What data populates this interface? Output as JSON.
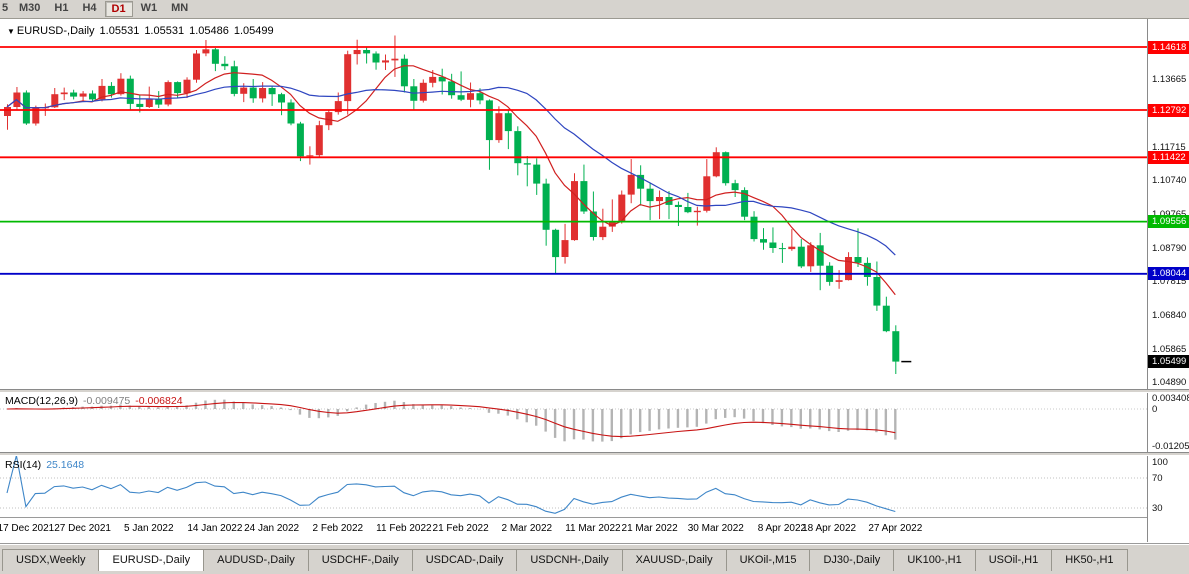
{
  "toolbar": {
    "partial_label": "5",
    "timeframes": [
      "M30",
      "H1",
      "H4",
      "D1",
      "W1",
      "MN"
    ],
    "active_timeframe": "D1"
  },
  "chart": {
    "header": {
      "symbol": "EURUSD-,Daily",
      "open": "1.05531",
      "high": "1.05531",
      "low": "1.05486",
      "close": "1.05499"
    },
    "levels": [
      {
        "price": 1.14618,
        "label": "1.14618",
        "color": "#ff0000"
      },
      {
        "price": 1.12792,
        "label": "1.12792",
        "color": "#ff0000"
      },
      {
        "price": 1.11422,
        "label": "1.11422",
        "color": "#ff0000"
      },
      {
        "price": 1.09556,
        "label": "1.09556",
        "color": "#00b900"
      },
      {
        "price": 1.08044,
        "label": "1.08044",
        "color": "#0000c8"
      }
    ],
    "current_price": {
      "price": 1.05499,
      "label": "1.05499",
      "color": "#000000"
    },
    "price_axis_ticks": [
      {
        "price": 1.13665,
        "label": "1.13665"
      },
      {
        "price": 1.1269,
        "label": "1.12690"
      },
      {
        "price": 1.11715,
        "label": "1.11715"
      },
      {
        "price": 1.1074,
        "label": "1.10740"
      },
      {
        "price": 1.09765,
        "label": "1.09765"
      },
      {
        "price": 1.0879,
        "label": "1.08790"
      },
      {
        "price": 1.07815,
        "label": "1.07815"
      },
      {
        "price": 1.0684,
        "label": "1.06840"
      },
      {
        "price": 1.05865,
        "label": "1.05865"
      },
      {
        "price": 1.0489,
        "label": "1.04890"
      }
    ]
  },
  "macd": {
    "label": "MACD(12,26,9)",
    "value_main": "-0.009475",
    "value_signal": "-0.006824",
    "fast": 12,
    "slow": 26,
    "signal": 9,
    "axis": [
      {
        "value": 0.003408,
        "label": "0.003408"
      },
      {
        "value": 0,
        "label": "0"
      },
      {
        "value": -0.012058,
        "label": "-0.012058"
      }
    ]
  },
  "rsi": {
    "label": "RSI(14)",
    "value": "25.1648",
    "period": 14,
    "axis": [
      {
        "value": 100,
        "label": "100"
      },
      {
        "value": 70,
        "label": "70"
      },
      {
        "value": 30,
        "label": "30"
      }
    ]
  },
  "tabs": [
    {
      "label": "USDX,Weekly",
      "active": false
    },
    {
      "label": "EURUSD-,Daily",
      "active": true
    },
    {
      "label": "AUDUSD-,Daily",
      "active": false
    },
    {
      "label": "USDCHF-,Daily",
      "active": false
    },
    {
      "label": "USDCAD-,Daily",
      "active": false
    },
    {
      "label": "USDCNH-,Daily",
      "active": false
    },
    {
      "label": "XAUUSD-,Daily",
      "active": false
    },
    {
      "label": "UKOil-,M15",
      "active": false
    },
    {
      "label": "DJ30-,Daily",
      "active": false
    },
    {
      "label": "UK100-,H1",
      "active": false
    },
    {
      "label": "USOil-,H1",
      "active": false
    },
    {
      "label": "HK50-,H1",
      "active": false
    }
  ],
  "colors": {
    "bull": "#e03030",
    "bear": "#00b050",
    "macd_hist": "#b4b4b4",
    "macd_signal": "#c81414",
    "rsi_line": "#3e86c8"
  },
  "chart_data": {
    "type": "candlestick",
    "title": "EURUSD-,Daily",
    "symbol": "EURUSD",
    "timeframe": "Daily",
    "ylim": [
      1.0473,
      1.1534
    ],
    "x_labels": [
      {
        "index": 2,
        "label": "17 Dec 2021"
      },
      {
        "index": 8,
        "label": "27 Dec 2021"
      },
      {
        "index": 15,
        "label": "5 Jan 2022"
      },
      {
        "index": 22,
        "label": "14 Jan 2022"
      },
      {
        "index": 28,
        "label": "24 Jan 2022"
      },
      {
        "index": 35,
        "label": "2 Feb 2022"
      },
      {
        "index": 42,
        "label": "11 Feb 2022"
      },
      {
        "index": 48,
        "label": "21 Feb 2022"
      },
      {
        "index": 55,
        "label": "2 Mar 2022"
      },
      {
        "index": 62,
        "label": "11 Mar 2022"
      },
      {
        "index": 68,
        "label": "21 Mar 2022"
      },
      {
        "index": 75,
        "label": "30 Mar 2022"
      },
      {
        "index": 82,
        "label": "8 Apr 2022"
      },
      {
        "index": 87,
        "label": "18 Apr 2022"
      },
      {
        "index": 94,
        "label": "27 Apr 2022"
      }
    ],
    "overlays": [
      {
        "name": "MA fast",
        "type": "sma",
        "period": 8,
        "color": "#d02020"
      },
      {
        "name": "MA slow",
        "type": "sma",
        "period": 20,
        "color": "#2f46c0"
      }
    ],
    "candles": [
      [
        1.1262,
        1.1296,
        1.1222,
        1.1288
      ],
      [
        1.1288,
        1.1346,
        1.1281,
        1.133
      ],
      [
        1.133,
        1.1336,
        1.1236,
        1.124
      ],
      [
        1.124,
        1.1292,
        1.1234,
        1.1285
      ],
      [
        1.1285,
        1.1298,
        1.1262,
        1.1287
      ],
      [
        1.1287,
        1.1343,
        1.1285,
        1.1325
      ],
      [
        1.1325,
        1.1344,
        1.1308,
        1.133
      ],
      [
        1.133,
        1.1338,
        1.131,
        1.1318
      ],
      [
        1.1318,
        1.1334,
        1.1305,
        1.1327
      ],
      [
        1.1327,
        1.1336,
        1.1302,
        1.131
      ],
      [
        1.131,
        1.1369,
        1.1304,
        1.1349
      ],
      [
        1.1349,
        1.136,
        1.1315,
        1.1325
      ],
      [
        1.1325,
        1.1386,
        1.1321,
        1.137
      ],
      [
        1.137,
        1.1379,
        1.1279,
        1.1297
      ],
      [
        1.1297,
        1.1323,
        1.1272,
        1.1288
      ],
      [
        1.1288,
        1.1347,
        1.1285,
        1.1312
      ],
      [
        1.1312,
        1.1334,
        1.1285,
        1.1295
      ],
      [
        1.1295,
        1.1365,
        1.129,
        1.136
      ],
      [
        1.136,
        1.1362,
        1.1313,
        1.1328
      ],
      [
        1.1328,
        1.1374,
        1.1314,
        1.1367
      ],
      [
        1.1367,
        1.1453,
        1.1358,
        1.1443
      ],
      [
        1.1443,
        1.1482,
        1.1435,
        1.1455
      ],
      [
        1.1455,
        1.1459,
        1.1392,
        1.1413
      ],
      [
        1.1413,
        1.1435,
        1.1395,
        1.1406
      ],
      [
        1.1406,
        1.1422,
        1.1319,
        1.1326
      ],
      [
        1.1326,
        1.1357,
        1.1302,
        1.1344
      ],
      [
        1.1344,
        1.1369,
        1.13,
        1.1313
      ],
      [
        1.1313,
        1.136,
        1.1301,
        1.1343
      ],
      [
        1.1343,
        1.1349,
        1.1291,
        1.1325
      ],
      [
        1.1325,
        1.1329,
        1.1264,
        1.1301
      ],
      [
        1.1301,
        1.131,
        1.1235,
        1.124
      ],
      [
        1.124,
        1.1245,
        1.1131,
        1.1145
      ],
      [
        1.1145,
        1.1174,
        1.1121,
        1.1148
      ],
      [
        1.1148,
        1.1248,
        1.1141,
        1.1235
      ],
      [
        1.1235,
        1.1279,
        1.1221,
        1.1273
      ],
      [
        1.1273,
        1.133,
        1.1266,
        1.1305
      ],
      [
        1.1305,
        1.1451,
        1.1266,
        1.1441
      ],
      [
        1.1441,
        1.1483,
        1.1411,
        1.1453
      ],
      [
        1.1453,
        1.1461,
        1.1414,
        1.1443
      ],
      [
        1.1443,
        1.1449,
        1.1396,
        1.1417
      ],
      [
        1.1417,
        1.144,
        1.1395,
        1.1423
      ],
      [
        1.1423,
        1.1495,
        1.1375,
        1.1428
      ],
      [
        1.1428,
        1.144,
        1.133,
        1.1348
      ],
      [
        1.1348,
        1.1369,
        1.128,
        1.1306
      ],
      [
        1.1306,
        1.1368,
        1.1301,
        1.1358
      ],
      [
        1.1358,
        1.1395,
        1.1345,
        1.1375
      ],
      [
        1.1375,
        1.1399,
        1.1324,
        1.1362
      ],
      [
        1.1362,
        1.1384,
        1.1312,
        1.1322
      ],
      [
        1.1322,
        1.1391,
        1.1305,
        1.1309
      ],
      [
        1.1309,
        1.1359,
        1.1287,
        1.1328
      ],
      [
        1.1328,
        1.1342,
        1.1296,
        1.1307
      ],
      [
        1.1307,
        1.131,
        1.1106,
        1.1192
      ],
      [
        1.1192,
        1.129,
        1.1184,
        1.127
      ],
      [
        1.127,
        1.128,
        1.1166,
        1.1218
      ],
      [
        1.1218,
        1.1232,
        1.109,
        1.1125
      ],
      [
        1.1125,
        1.1146,
        1.1058,
        1.1121
      ],
      [
        1.1121,
        1.1139,
        1.1033,
        1.1066
      ],
      [
        1.1066,
        1.108,
        1.0886,
        1.0932
      ],
      [
        1.0932,
        1.0935,
        1.0806,
        1.0853
      ],
      [
        1.0853,
        1.0949,
        1.0834,
        1.0902
      ],
      [
        1.0902,
        1.1096,
        1.09,
        1.1073
      ],
      [
        1.1073,
        1.1121,
        1.0978,
        1.0985
      ],
      [
        1.0985,
        1.1043,
        1.0901,
        1.0911
      ],
      [
        1.0911,
        1.0993,
        1.0902,
        1.0941
      ],
      [
        1.0941,
        1.102,
        1.0926,
        1.0955
      ],
      [
        1.0955,
        1.1046,
        1.095,
        1.1034
      ],
      [
        1.1034,
        1.1137,
        1.1009,
        1.1091
      ],
      [
        1.1091,
        1.1119,
        1.1002,
        1.1051
      ],
      [
        1.1051,
        1.1069,
        1.096,
        1.1015
      ],
      [
        1.1015,
        1.1046,
        1.0963,
        1.1027
      ],
      [
        1.1027,
        1.1044,
        1.0963,
        1.1004
      ],
      [
        1.1004,
        1.1014,
        1.0943,
        1.0998
      ],
      [
        1.0998,
        1.1039,
        1.098,
        1.0983
      ],
      [
        1.0983,
        1.0999,
        1.0944,
        1.0987
      ],
      [
        1.0987,
        1.1137,
        1.0982,
        1.1087
      ],
      [
        1.1087,
        1.1171,
        1.1084,
        1.1157
      ],
      [
        1.1157,
        1.1159,
        1.106,
        1.1067
      ],
      [
        1.1067,
        1.1077,
        1.1027,
        1.1047
      ],
      [
        1.1047,
        1.1055,
        1.096,
        1.097
      ],
      [
        1.097,
        1.0986,
        1.0898,
        1.0905
      ],
      [
        1.0905,
        1.0937,
        1.0874,
        1.0895
      ],
      [
        1.0895,
        1.0939,
        1.0865,
        1.0879
      ],
      [
        1.0879,
        1.0894,
        1.0836,
        1.0876
      ],
      [
        1.0876,
        1.0934,
        1.0871,
        1.0883
      ],
      [
        1.0883,
        1.0905,
        1.0821,
        1.0826
      ],
      [
        1.0826,
        1.0896,
        1.081,
        1.0887
      ],
      [
        1.0887,
        1.0923,
        1.0757,
        1.0828
      ],
      [
        1.0828,
        1.0838,
        1.077,
        1.0781
      ],
      [
        1.0781,
        1.0815,
        1.0761,
        1.0786
      ],
      [
        1.0786,
        1.0867,
        1.0785,
        1.0853
      ],
      [
        1.0853,
        1.0936,
        1.0824,
        1.0836
      ],
      [
        1.0836,
        1.0852,
        1.077,
        1.0795
      ],
      [
        1.0795,
        1.084,
        1.0697,
        1.0712
      ],
      [
        1.0712,
        1.0738,
        1.0635,
        1.0638
      ],
      [
        1.0638,
        1.0655,
        1.0514,
        1.05499
      ]
    ]
  }
}
